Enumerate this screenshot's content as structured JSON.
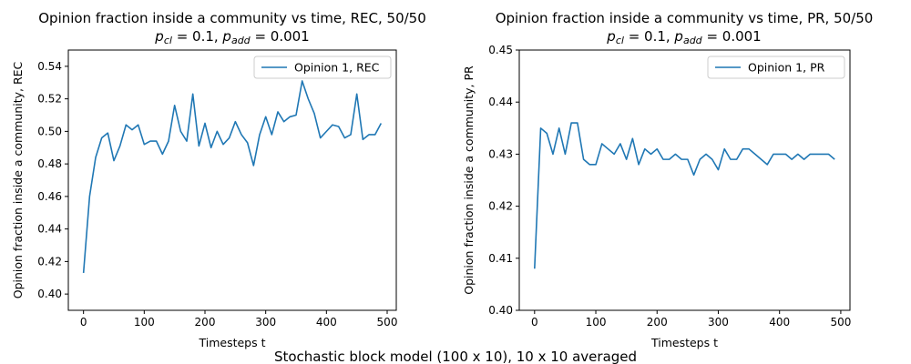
{
  "figure": {
    "suptitle": "Stochastic block model (100 x 10), 10 x 10 averaged"
  },
  "chart_data": [
    {
      "type": "line",
      "title": "Opinion fraction inside a community vs time, REC, 50/50",
      "subtitle": {
        "p1_base": "p",
        "p1_sub": "cl",
        "p1_val": " = 0.1, ",
        "p2_base": "p",
        "p2_sub": "add",
        "p2_val": " = 0.001"
      },
      "xlabel": "Timesteps t",
      "ylabel": "Opinion fraction inside a community, REC",
      "xlim": [
        -25,
        515
      ],
      "ylim": [
        0.39,
        0.55
      ],
      "xticks": [
        0,
        100,
        200,
        300,
        400,
        500
      ],
      "xtick_labels": [
        "0",
        "100",
        "200",
        "300",
        "400",
        "500"
      ],
      "yticks": [
        0.4,
        0.42,
        0.44,
        0.46,
        0.48,
        0.5,
        0.52,
        0.54
      ],
      "ytick_labels": [
        "0.40",
        "0.42",
        "0.44",
        "0.46",
        "0.48",
        "0.50",
        "0.52",
        "0.54"
      ],
      "grid": false,
      "legend_position": "top-right",
      "color": "#1f77b4",
      "series": [
        {
          "name": "Opinion 1, REC",
          "x": [
            0,
            10,
            20,
            30,
            40,
            50,
            60,
            70,
            80,
            90,
            100,
            110,
            120,
            130,
            140,
            150,
            160,
            170,
            180,
            190,
            200,
            210,
            220,
            230,
            240,
            250,
            260,
            270,
            280,
            290,
            300,
            310,
            320,
            330,
            340,
            350,
            360,
            370,
            380,
            390,
            400,
            410,
            420,
            430,
            440,
            450,
            460,
            470,
            480,
            490
          ],
          "y": [
            0.413,
            0.46,
            0.484,
            0.496,
            0.499,
            0.482,
            0.491,
            0.504,
            0.501,
            0.504,
            0.492,
            0.494,
            0.494,
            0.486,
            0.494,
            0.516,
            0.5,
            0.494,
            0.523,
            0.491,
            0.505,
            0.49,
            0.5,
            0.492,
            0.496,
            0.506,
            0.498,
            0.493,
            0.479,
            0.498,
            0.509,
            0.498,
            0.512,
            0.506,
            0.509,
            0.51,
            0.531,
            0.52,
            0.511,
            0.496,
            0.5,
            0.504,
            0.503,
            0.496,
            0.498,
            0.523,
            0.495,
            0.498,
            0.498,
            0.505
          ]
        }
      ]
    },
    {
      "type": "line",
      "title": "Opinion fraction inside a community vs time, PR, 50/50",
      "subtitle": {
        "p1_base": "p",
        "p1_sub": "cl",
        "p1_val": " = 0.1, ",
        "p2_base": "p",
        "p2_sub": "add",
        "p2_val": " = 0.001"
      },
      "xlabel": "Timesteps t",
      "ylabel": "Opinion fraction inside a community, PR",
      "xlim": [
        -25,
        515
      ],
      "ylim": [
        0.4,
        0.45
      ],
      "xticks": [
        0,
        100,
        200,
        300,
        400,
        500
      ],
      "xtick_labels": [
        "0",
        "100",
        "200",
        "300",
        "400",
        "500"
      ],
      "yticks": [
        0.4,
        0.41,
        0.42,
        0.43,
        0.44,
        0.45
      ],
      "ytick_labels": [
        "0.40",
        "0.41",
        "0.42",
        "0.43",
        "0.44",
        "0.45"
      ],
      "grid": false,
      "legend_position": "top-right",
      "color": "#1f77b4",
      "series": [
        {
          "name": "Opinion 1, PR",
          "x": [
            0,
            10,
            20,
            30,
            40,
            50,
            60,
            70,
            80,
            90,
            100,
            110,
            120,
            130,
            140,
            150,
            160,
            170,
            180,
            190,
            200,
            210,
            220,
            230,
            240,
            250,
            260,
            270,
            280,
            290,
            300,
            310,
            320,
            330,
            340,
            350,
            360,
            370,
            380,
            390,
            400,
            410,
            420,
            430,
            440,
            450,
            460,
            470,
            480,
            490
          ],
          "y": [
            0.408,
            0.435,
            0.434,
            0.43,
            0.435,
            0.43,
            0.436,
            0.436,
            0.429,
            0.428,
            0.428,
            0.432,
            0.431,
            0.43,
            0.432,
            0.429,
            0.433,
            0.428,
            0.431,
            0.43,
            0.431,
            0.429,
            0.429,
            0.43,
            0.429,
            0.429,
            0.426,
            0.429,
            0.43,
            0.429,
            0.427,
            0.431,
            0.429,
            0.429,
            0.431,
            0.431,
            0.43,
            0.429,
            0.428,
            0.43,
            0.43,
            0.43,
            0.429,
            0.43,
            0.429,
            0.43,
            0.43,
            0.43,
            0.43,
            0.429
          ]
        }
      ]
    }
  ]
}
